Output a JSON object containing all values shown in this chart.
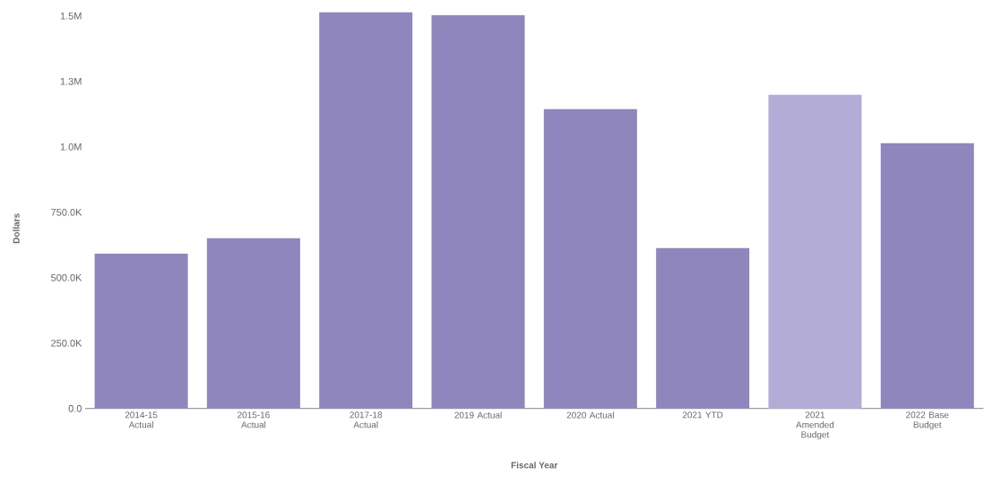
{
  "chart_data": {
    "type": "bar",
    "xlabel": "Fiscal Year",
    "ylabel": "Dollars",
    "categories": [
      "2014-15 Actual",
      "2015-16 Actual",
      "2017-18 Actual",
      "2019 Actual",
      "2020 Actual",
      "2021 YTD",
      "2021 Amended Budget",
      "2022 Base Budget"
    ],
    "values": [
      592000,
      651000,
      1514000,
      1503000,
      1144000,
      613000,
      1199000,
      1014000
    ],
    "colors": [
      "#8e86bd",
      "#8e86bd",
      "#8e86bd",
      "#8e86bd",
      "#8e86bd",
      "#8e86bd",
      "#b3acd6",
      "#8e86bd"
    ],
    "ylim": [
      0,
      1520000
    ],
    "yticks": [
      {
        "value": 0,
        "label": "0.0"
      },
      {
        "value": 250000,
        "label": "250.0K"
      },
      {
        "value": 500000,
        "label": "500.0K"
      },
      {
        "value": 750000,
        "label": "750.0K"
      },
      {
        "value": 1000000,
        "label": "1.0M"
      },
      {
        "value": 1250000,
        "label": "1.3M"
      },
      {
        "value": 1500000,
        "label": "1.5M"
      }
    ]
  }
}
